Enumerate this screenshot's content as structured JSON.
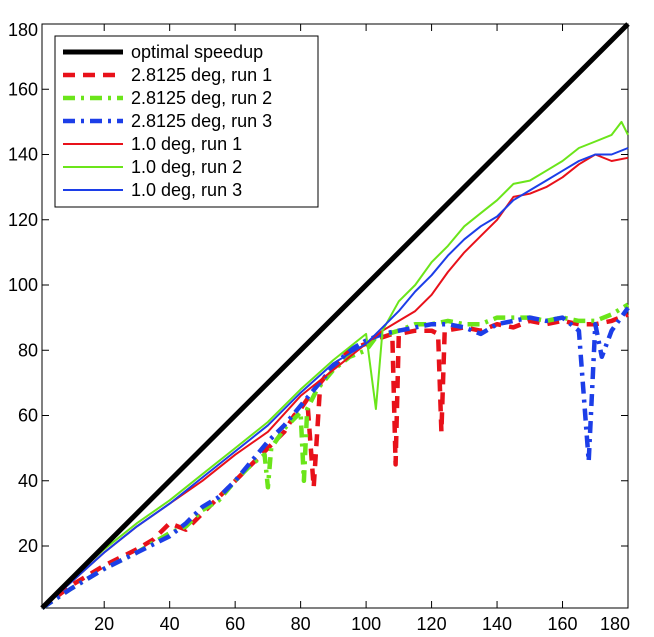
{
  "chart_data": {
    "type": "line",
    "title": "",
    "xlabel": "",
    "ylabel": "",
    "xlim": [
      1,
      180
    ],
    "ylim": [
      1,
      180
    ],
    "x_ticks": [
      20,
      40,
      60,
      80,
      100,
      120,
      140,
      160,
      180
    ],
    "y_ticks": [
      20,
      40,
      60,
      80,
      100,
      120,
      140,
      160,
      180
    ],
    "grid": false,
    "legend_position": "top-left",
    "series": [
      {
        "name": "optimal speedup",
        "color": "#000000",
        "style": "solid-thick",
        "points": [
          [
            1,
            1
          ],
          [
            180,
            180
          ]
        ]
      },
      {
        "name": "2.8125 deg, run 1",
        "color": "#e8111a",
        "style": "dashed",
        "points": [
          [
            1,
            1
          ],
          [
            10,
            8
          ],
          [
            20,
            14
          ],
          [
            30,
            19
          ],
          [
            35,
            22
          ],
          [
            40,
            27
          ],
          [
            45,
            25
          ],
          [
            50,
            30
          ],
          [
            55,
            35
          ],
          [
            60,
            40
          ],
          [
            65,
            45
          ],
          [
            70,
            50
          ],
          [
            75,
            55
          ],
          [
            78,
            60
          ],
          [
            80,
            62
          ],
          [
            82,
            65
          ],
          [
            84,
            38
          ],
          [
            86,
            70
          ],
          [
            90,
            75
          ],
          [
            95,
            80
          ],
          [
            100,
            82
          ],
          [
            105,
            84
          ],
          [
            108,
            85
          ],
          [
            109,
            45
          ],
          [
            110,
            85
          ],
          [
            115,
            86
          ],
          [
            120,
            86
          ],
          [
            122,
            85
          ],
          [
            123,
            55
          ],
          [
            124,
            86
          ],
          [
            130,
            87
          ],
          [
            135,
            86
          ],
          [
            140,
            88
          ],
          [
            145,
            87
          ],
          [
            150,
            89
          ],
          [
            155,
            88
          ],
          [
            160,
            89
          ],
          [
            165,
            88
          ],
          [
            170,
            88
          ],
          [
            175,
            89
          ],
          [
            180,
            91
          ]
        ]
      },
      {
        "name": "2.8125 deg, run 2",
        "color": "#6be51a",
        "style": "dash-dot",
        "points": [
          [
            1,
            1
          ],
          [
            10,
            7
          ],
          [
            20,
            13
          ],
          [
            30,
            18
          ],
          [
            40,
            24
          ],
          [
            45,
            26
          ],
          [
            50,
            31
          ],
          [
            55,
            34
          ],
          [
            60,
            40
          ],
          [
            65,
            45
          ],
          [
            69,
            48
          ],
          [
            70,
            38
          ],
          [
            71,
            50
          ],
          [
            75,
            56
          ],
          [
            80,
            61
          ],
          [
            81,
            40
          ],
          [
            82,
            62
          ],
          [
            85,
            68
          ],
          [
            90,
            74
          ],
          [
            95,
            78
          ],
          [
            100,
            80
          ],
          [
            103,
            84
          ],
          [
            110,
            86
          ],
          [
            115,
            88
          ],
          [
            120,
            88
          ],
          [
            125,
            89
          ],
          [
            130,
            88
          ],
          [
            135,
            88
          ],
          [
            140,
            90
          ],
          [
            145,
            90
          ],
          [
            150,
            90
          ],
          [
            155,
            89
          ],
          [
            160,
            90
          ],
          [
            165,
            89
          ],
          [
            170,
            89
          ],
          [
            175,
            91
          ],
          [
            180,
            94
          ]
        ]
      },
      {
        "name": "2.8125 deg, run 3",
        "color": "#1c3ee8",
        "style": "dash-dot",
        "points": [
          [
            1,
            1
          ],
          [
            10,
            7
          ],
          [
            20,
            13
          ],
          [
            30,
            18
          ],
          [
            40,
            23
          ],
          [
            45,
            27
          ],
          [
            50,
            32
          ],
          [
            55,
            35
          ],
          [
            60,
            40
          ],
          [
            65,
            46
          ],
          [
            70,
            52
          ],
          [
            75,
            57
          ],
          [
            80,
            63
          ],
          [
            85,
            69
          ],
          [
            90,
            75
          ],
          [
            95,
            80
          ],
          [
            100,
            83
          ],
          [
            105,
            85
          ],
          [
            110,
            86
          ],
          [
            115,
            87
          ],
          [
            120,
            88
          ],
          [
            125,
            88
          ],
          [
            130,
            87
          ],
          [
            135,
            85
          ],
          [
            140,
            88
          ],
          [
            145,
            89
          ],
          [
            150,
            90
          ],
          [
            155,
            89
          ],
          [
            160,
            90
          ],
          [
            165,
            86
          ],
          [
            168,
            46
          ],
          [
            170,
            88
          ],
          [
            172,
            78
          ],
          [
            175,
            86
          ],
          [
            180,
            93
          ]
        ]
      },
      {
        "name": "1.0 deg, run 1",
        "color": "#e8111a",
        "style": "solid",
        "points": [
          [
            1,
            1
          ],
          [
            10,
            9
          ],
          [
            20,
            18
          ],
          [
            30,
            26
          ],
          [
            40,
            33
          ],
          [
            50,
            40
          ],
          [
            60,
            48
          ],
          [
            70,
            55
          ],
          [
            80,
            66
          ],
          [
            90,
            74
          ],
          [
            100,
            82
          ],
          [
            105,
            86
          ],
          [
            110,
            89
          ],
          [
            115,
            92
          ],
          [
            120,
            97
          ],
          [
            125,
            104
          ],
          [
            130,
            110
          ],
          [
            135,
            115
          ],
          [
            140,
            120
          ],
          [
            145,
            127
          ],
          [
            150,
            128
          ],
          [
            155,
            130
          ],
          [
            160,
            133
          ],
          [
            165,
            137
          ],
          [
            170,
            140
          ],
          [
            175,
            138
          ],
          [
            180,
            139
          ]
        ]
      },
      {
        "name": "1.0 deg, run 2",
        "color": "#6be51a",
        "style": "solid",
        "points": [
          [
            1,
            1
          ],
          [
            10,
            10
          ],
          [
            20,
            19
          ],
          [
            30,
            27
          ],
          [
            40,
            34
          ],
          [
            50,
            42
          ],
          [
            60,
            50
          ],
          [
            70,
            58
          ],
          [
            80,
            68
          ],
          [
            90,
            77
          ],
          [
            95,
            81
          ],
          [
            100,
            85
          ],
          [
            103,
            62
          ],
          [
            105,
            86
          ],
          [
            110,
            95
          ],
          [
            115,
            100
          ],
          [
            120,
            107
          ],
          [
            125,
            112
          ],
          [
            130,
            118
          ],
          [
            135,
            122
          ],
          [
            140,
            126
          ],
          [
            145,
            131
          ],
          [
            150,
            132
          ],
          [
            155,
            135
          ],
          [
            160,
            138
          ],
          [
            165,
            142
          ],
          [
            170,
            144
          ],
          [
            175,
            146
          ],
          [
            178,
            150
          ],
          [
            180,
            146
          ]
        ]
      },
      {
        "name": "1.0 deg, run 3",
        "color": "#1c3ee8",
        "style": "solid",
        "points": [
          [
            1,
            1
          ],
          [
            10,
            9
          ],
          [
            20,
            18
          ],
          [
            30,
            26
          ],
          [
            40,
            33
          ],
          [
            50,
            41
          ],
          [
            60,
            49
          ],
          [
            70,
            57
          ],
          [
            80,
            67
          ],
          [
            90,
            76
          ],
          [
            100,
            82
          ],
          [
            105,
            87
          ],
          [
            110,
            92
          ],
          [
            115,
            98
          ],
          [
            120,
            103
          ],
          [
            125,
            109
          ],
          [
            130,
            114
          ],
          [
            135,
            118
          ],
          [
            140,
            121
          ],
          [
            145,
            126
          ],
          [
            150,
            129
          ],
          [
            155,
            132
          ],
          [
            160,
            135
          ],
          [
            165,
            138
          ],
          [
            170,
            140
          ],
          [
            175,
            140
          ],
          [
            180,
            142
          ]
        ]
      }
    ]
  }
}
